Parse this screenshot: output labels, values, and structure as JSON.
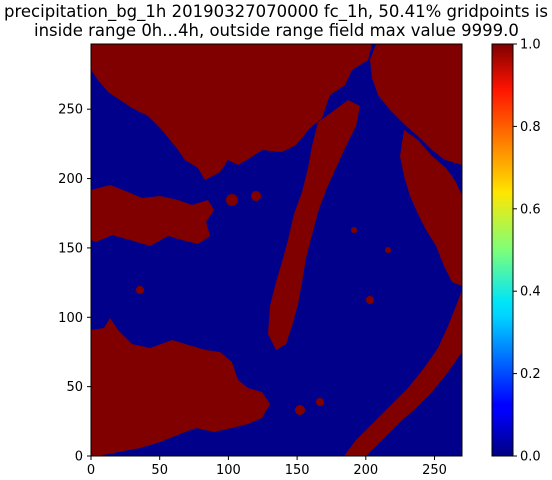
{
  "title_line1": "precipitation_bg_1h 20190327070000 fc_1h, 50.41% gridpoints is",
  "title_line2": "inside range 0h...4h, outside range field max value 9999.0",
  "chart_data": {
    "type": "heatmap",
    "x_ticks": [
      0,
      50,
      100,
      150,
      200,
      250
    ],
    "y_ticks": [
      0,
      50,
      100,
      150,
      200,
      250
    ],
    "xlim": [
      0,
      270
    ],
    "ylim": [
      0,
      297
    ],
    "colorbar": {
      "colormap": "jet",
      "range": [
        0.0,
        1.0
      ],
      "ticks": [
        "0.0",
        "0.2",
        "0.4",
        "0.6",
        "0.8",
        "1.0"
      ]
    },
    "value_colors": {
      "low": "#00008b",
      "high": "#800000"
    },
    "high_fraction_percent": 50.41
  }
}
